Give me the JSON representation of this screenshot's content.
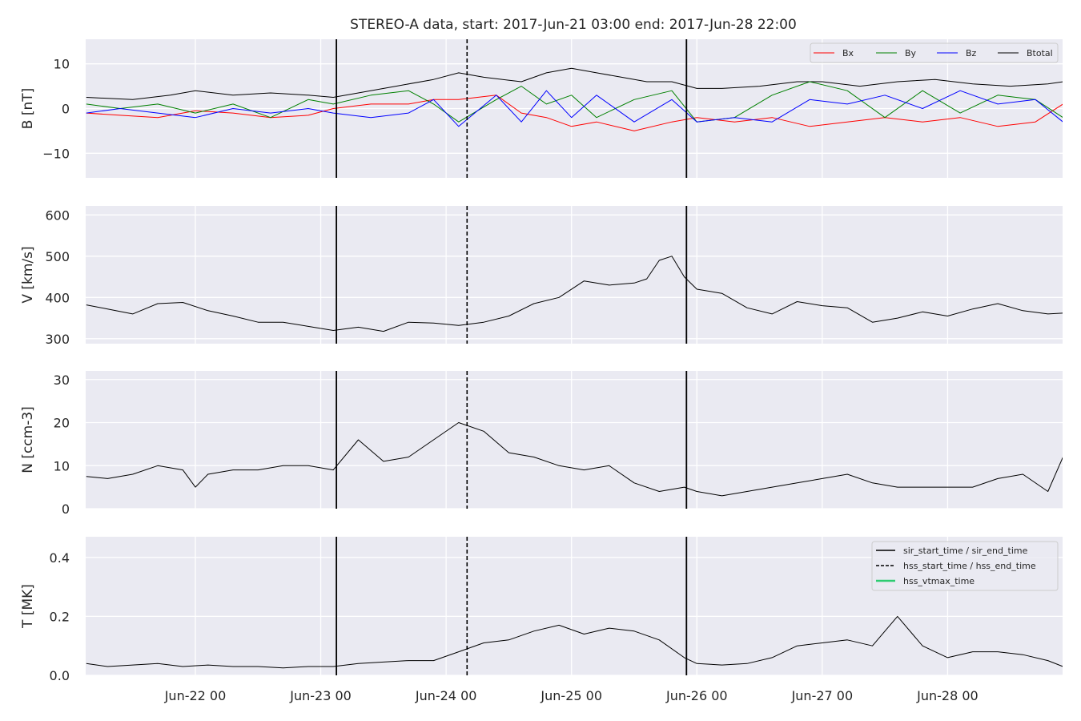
{
  "title": "STEREO-A data, start: 2017-Jun-21 03:00  end: 2017-Jun-28 22:00",
  "x_tick_labels": [
    "Jun-22 00",
    "Jun-23 00",
    "Jun-24 00",
    "Jun-25 00",
    "Jun-26 00",
    "Jun-27 00",
    "Jun-28 00"
  ],
  "colors": {
    "bx": "#ff0000",
    "by": "#008000",
    "bz": "#0000ff",
    "btotal": "#000000",
    "hss_vtmax": "#2ecc71",
    "panel_bg": "#eaeaf2",
    "grid": "#ffffff"
  },
  "chart_data": [
    {
      "type": "line",
      "panel": "B",
      "ylabel": "B [nT]",
      "ylim": [
        -15.5,
        15.5
      ],
      "yticks": [
        -10,
        0,
        10
      ],
      "y_tick_labels": [
        "−10",
        "0",
        "10"
      ],
      "x_unit": "days since 2017-06-21 00:00",
      "xlim": [
        0.125,
        7.917
      ],
      "legend_position": "top-right",
      "legend": [
        "Bx",
        "By",
        "Bz",
        "Btotal"
      ],
      "series": [
        {
          "name": "Btotal",
          "color": "#000000",
          "x": [
            0.13,
            0.5,
            0.8,
            1.0,
            1.3,
            1.6,
            1.9,
            2.1,
            2.3,
            2.6,
            2.9,
            3.1,
            3.3,
            3.6,
            3.8,
            4.0,
            4.2,
            4.4,
            4.6,
            4.8,
            5.0,
            5.2,
            5.5,
            5.8,
            6.0,
            6.3,
            6.6,
            6.9,
            7.2,
            7.5,
            7.8,
            7.92
          ],
          "y": [
            2.5,
            2,
            3,
            4,
            3,
            3.5,
            3,
            2.5,
            3.5,
            5,
            6.5,
            8,
            7,
            6,
            8,
            9,
            8,
            7,
            6,
            6,
            4.5,
            4.5,
            5,
            6,
            6,
            5,
            6,
            6.5,
            5.5,
            5,
            5.5,
            6
          ]
        },
        {
          "name": "Bx",
          "color": "#ff0000",
          "x": [
            0.13,
            0.4,
            0.7,
            1.0,
            1.3,
            1.6,
            1.9,
            2.1,
            2.4,
            2.7,
            2.9,
            3.1,
            3.4,
            3.6,
            3.8,
            4.0,
            4.2,
            4.5,
            4.8,
            5.0,
            5.3,
            5.6,
            5.9,
            6.2,
            6.5,
            6.8,
            7.1,
            7.4,
            7.7,
            7.92
          ],
          "y": [
            -1,
            -1.5,
            -2,
            -0.5,
            -1,
            -2,
            -1.5,
            0,
            1,
            1,
            2,
            2,
            3,
            -1,
            -2,
            -4,
            -3,
            -5,
            -3,
            -2,
            -3,
            -2,
            -4,
            -3,
            -2,
            -3,
            -2,
            -4,
            -3,
            1
          ]
        },
        {
          "name": "By",
          "color": "#008000",
          "x": [
            0.13,
            0.4,
            0.7,
            1.0,
            1.3,
            1.6,
            1.9,
            2.1,
            2.4,
            2.7,
            2.9,
            3.1,
            3.4,
            3.6,
            3.8,
            4.0,
            4.2,
            4.5,
            4.8,
            5.0,
            5.3,
            5.6,
            5.9,
            6.2,
            6.5,
            6.8,
            7.1,
            7.4,
            7.7,
            7.92
          ],
          "y": [
            1,
            0,
            1,
            -1,
            1,
            -2,
            2,
            1,
            3,
            4,
            1,
            -3,
            2,
            5,
            1,
            3,
            -2,
            2,
            4,
            -3,
            -2,
            3,
            6,
            4,
            -2,
            4,
            -1,
            3,
            2,
            -2
          ]
        },
        {
          "name": "Bz",
          "color": "#0000ff",
          "x": [
            0.13,
            0.4,
            0.7,
            1.0,
            1.3,
            1.6,
            1.9,
            2.1,
            2.4,
            2.7,
            2.9,
            3.1,
            3.4,
            3.6,
            3.8,
            4.0,
            4.2,
            4.5,
            4.8,
            5.0,
            5.3,
            5.6,
            5.9,
            6.2,
            6.5,
            6.8,
            7.1,
            7.4,
            7.7,
            7.92
          ],
          "y": [
            -1,
            0,
            -1,
            -2,
            0,
            -1,
            0,
            -1,
            -2,
            -1,
            2,
            -4,
            3,
            -3,
            4,
            -2,
            3,
            -3,
            2,
            -3,
            -2,
            -3,
            2,
            1,
            3,
            0,
            4,
            1,
            2,
            -3
          ]
        }
      ]
    },
    {
      "type": "line",
      "panel": "V",
      "ylabel": "V [km/s]",
      "ylim": [
        288,
        622
      ],
      "yticks": [
        300,
        400,
        500,
        600
      ],
      "y_tick_labels": [
        "300",
        "400",
        "500",
        "600"
      ],
      "xlim": [
        0.125,
        7.917
      ],
      "series": [
        {
          "name": "",
          "color": "#000000",
          "x": [
            0.13,
            0.3,
            0.5,
            0.7,
            0.9,
            1.1,
            1.3,
            1.5,
            1.7,
            1.9,
            2.1,
            2.3,
            2.5,
            2.7,
            2.9,
            3.1,
            3.3,
            3.5,
            3.7,
            3.9,
            4.1,
            4.3,
            4.5,
            4.6,
            4.7,
            4.8,
            4.9,
            5.0,
            5.2,
            5.4,
            5.6,
            5.8,
            6.0,
            6.2,
            6.4,
            6.6,
            6.8,
            7.0,
            7.2,
            7.4,
            7.6,
            7.8,
            7.92
          ],
          "y": [
            382,
            372,
            360,
            385,
            388,
            368,
            355,
            340,
            340,
            330,
            320,
            328,
            318,
            340,
            338,
            332,
            340,
            355,
            385,
            400,
            440,
            430,
            435,
            445,
            490,
            500,
            450,
            420,
            410,
            375,
            360,
            390,
            380,
            375,
            340,
            350,
            365,
            355,
            372,
            385,
            368,
            360,
            362
          ]
        }
      ]
    },
    {
      "type": "line",
      "panel": "N",
      "ylabel": "N [ccm-3]",
      "ylim": [
        0,
        32
      ],
      "yticks": [
        0,
        10,
        20,
        30
      ],
      "y_tick_labels": [
        "0",
        "10",
        "20",
        "30"
      ],
      "xlim": [
        0.125,
        7.917
      ],
      "series": [
        {
          "name": "",
          "color": "#000000",
          "x": [
            0.13,
            0.3,
            0.5,
            0.7,
            0.9,
            1.0,
            1.1,
            1.3,
            1.5,
            1.7,
            1.9,
            2.1,
            2.3,
            2.5,
            2.7,
            2.9,
            3.1,
            3.3,
            3.5,
            3.7,
            3.9,
            4.1,
            4.3,
            4.5,
            4.7,
            4.9,
            5.0,
            5.2,
            5.4,
            5.6,
            5.8,
            6.0,
            6.2,
            6.4,
            6.6,
            6.8,
            7.0,
            7.2,
            7.4,
            7.6,
            7.8,
            7.92
          ],
          "y": [
            7.5,
            7,
            8,
            10,
            9,
            5,
            8,
            9,
            9,
            10,
            10,
            9,
            16,
            11,
            12,
            16,
            20,
            18,
            13,
            12,
            10,
            9,
            10,
            6,
            4,
            5,
            4,
            3,
            4,
            5,
            6,
            7,
            8,
            6,
            5,
            5,
            5,
            5,
            7,
            8,
            4,
            12
          ]
        }
      ]
    },
    {
      "type": "line",
      "panel": "T",
      "ylabel": "T [MK]",
      "ylim": [
        0,
        0.47
      ],
      "yticks": [
        0.0,
        0.2,
        0.4
      ],
      "y_tick_labels": [
        "0.0",
        "0.2",
        "0.4"
      ],
      "xlim": [
        0.125,
        7.917
      ],
      "legend_position": "top-right",
      "legend": [
        "sir_start_time / sir_end_time",
        "hss_start_time / hss_end_time",
        "hss_vtmax_time"
      ],
      "series": [
        {
          "name": "",
          "color": "#000000",
          "x": [
            0.13,
            0.3,
            0.5,
            0.7,
            0.9,
            1.1,
            1.3,
            1.5,
            1.7,
            1.9,
            2.1,
            2.3,
            2.5,
            2.7,
            2.9,
            3.1,
            3.3,
            3.5,
            3.7,
            3.9,
            4.1,
            4.3,
            4.5,
            4.7,
            4.9,
            5.0,
            5.2,
            5.4,
            5.6,
            5.8,
            6.0,
            6.2,
            6.4,
            6.6,
            6.8,
            7.0,
            7.2,
            7.4,
            7.6,
            7.8,
            7.92
          ],
          "y": [
            0.04,
            0.03,
            0.035,
            0.04,
            0.03,
            0.035,
            0.03,
            0.03,
            0.025,
            0.03,
            0.03,
            0.04,
            0.045,
            0.05,
            0.05,
            0.08,
            0.11,
            0.12,
            0.15,
            0.17,
            0.14,
            0.16,
            0.15,
            0.12,
            0.06,
            0.04,
            0.035,
            0.04,
            0.06,
            0.1,
            0.11,
            0.12,
            0.1,
            0.2,
            0.1,
            0.06,
            0.08,
            0.08,
            0.07,
            0.05,
            0.03
          ]
        }
      ]
    }
  ],
  "events": {
    "sir_times": [
      2.125,
      4.917
    ],
    "hss_times": [
      3.167
    ]
  }
}
